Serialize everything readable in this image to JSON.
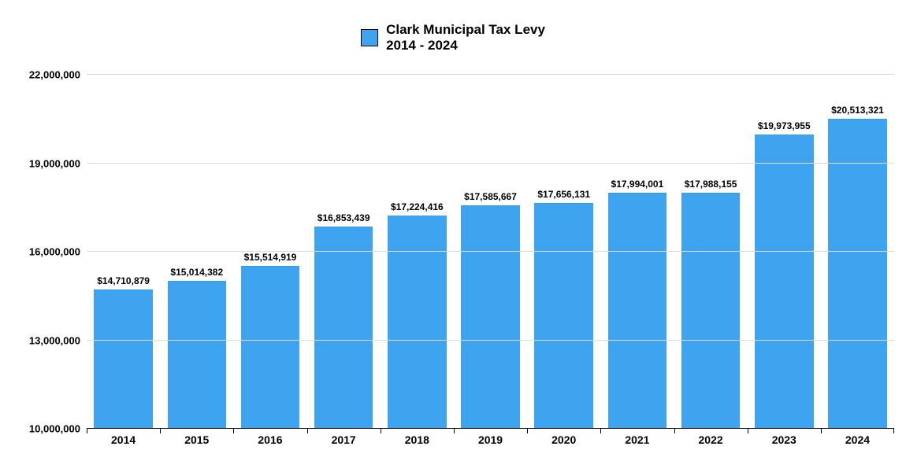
{
  "chart": {
    "type": "bar",
    "title_line1": "Clark Municipal Tax Levy",
    "title_line2": "2014 - 2024",
    "title_fontsize": 17,
    "legend_swatch_color": "#3ea4f0",
    "background_color": "#ffffff",
    "grid_color": "#d9d9d9",
    "axis_color": "#000000",
    "bar_color": "#3ea4f0",
    "bar_width_ratio": 0.8,
    "label_fontsize": 12,
    "ylabel_fontsize": 13,
    "xlabel_fontsize": 14,
    "ylim": [
      10000000,
      22000000
    ],
    "ytick_step": 3000000,
    "yticks": [
      {
        "value": 10000000,
        "label": "10,000,000"
      },
      {
        "value": 13000000,
        "label": "13,000,000"
      },
      {
        "value": 16000000,
        "label": "16,000,000"
      },
      {
        "value": 19000000,
        "label": "19,000,000"
      },
      {
        "value": 22000000,
        "label": "22,000,000"
      }
    ],
    "categories": [
      "2014",
      "2015",
      "2016",
      "2017",
      "2018",
      "2019",
      "2020",
      "2021",
      "2022",
      "2023",
      "2024"
    ],
    "values": [
      14710879,
      15014382,
      15514919,
      16853439,
      17224416,
      17585667,
      17656131,
      17994001,
      17988155,
      19973955,
      20513321
    ],
    "value_labels": [
      "$14,710,879",
      "$15,014,382",
      "$15,514,919",
      "$16,853,439",
      "$17,224,416",
      "$17,585,667",
      "$17,656,131",
      "$17,994,001",
      "$17,988,155",
      "$19,973,955",
      "$20,513,321"
    ]
  }
}
